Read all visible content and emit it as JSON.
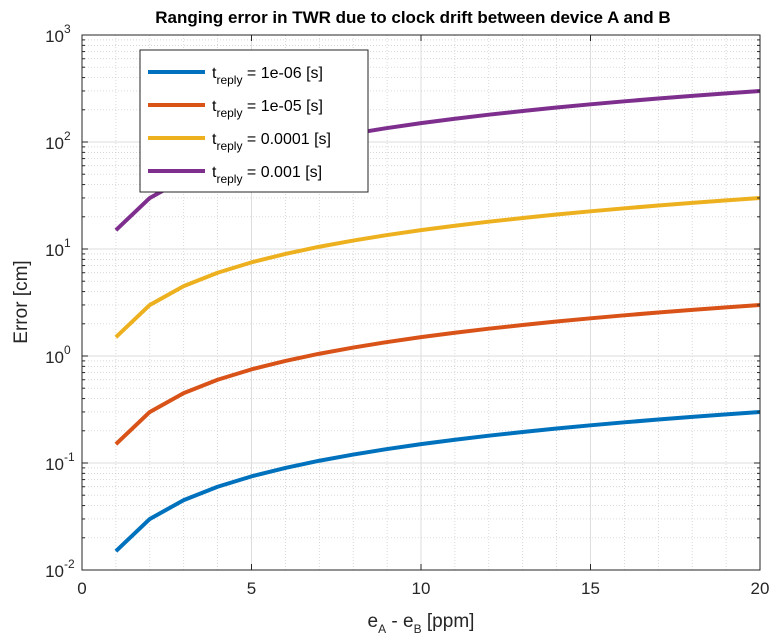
{
  "chart_data": {
    "type": "line",
    "title": "Ranging error in TWR due to clock drift between device A and B",
    "xlabel": {
      "e": "e",
      "sub_a": "A",
      "minus": " - ",
      "e2": "e",
      "sub_b": "B",
      "unit": " [ppm]"
    },
    "ylabel": "Error [cm]",
    "x_scale": "linear",
    "y_scale": "log",
    "xlim": [
      0,
      20
    ],
    "ylim": [
      0.01,
      1000
    ],
    "x_ticks": [
      0,
      5,
      10,
      15,
      20
    ],
    "y_ticks": [
      {
        "value": 0.01,
        "base": "10",
        "exp": "-2"
      },
      {
        "value": 0.1,
        "base": "10",
        "exp": "-1"
      },
      {
        "value": 1,
        "base": "10",
        "exp": "0"
      },
      {
        "value": 10,
        "base": "10",
        "exp": "1"
      },
      {
        "value": 100,
        "base": "10",
        "exp": "2"
      },
      {
        "value": 1000,
        "base": "10",
        "exp": "3"
      }
    ],
    "grid": true,
    "minor_grid": true,
    "legend_position": "top-left",
    "x": [
      1,
      2,
      3,
      4,
      5,
      6,
      7,
      8,
      9,
      10,
      11,
      12,
      13,
      14,
      15,
      16,
      17,
      18,
      19,
      20
    ],
    "series": [
      {
        "name_prefix": "t",
        "name_sub": "reply",
        "name_value": " = 1e-06 [s]",
        "color": "#0072BD",
        "values": [
          0.015,
          0.03,
          0.045,
          0.06,
          0.075,
          0.09,
          0.105,
          0.12,
          0.135,
          0.15,
          0.165,
          0.18,
          0.195,
          0.21,
          0.225,
          0.24,
          0.255,
          0.27,
          0.285,
          0.3
        ]
      },
      {
        "name_prefix": "t",
        "name_sub": "reply",
        "name_value": " = 1e-05 [s]",
        "color": "#D95319",
        "values": [
          0.15,
          0.3,
          0.45,
          0.6,
          0.75,
          0.9,
          1.05,
          1.2,
          1.35,
          1.5,
          1.65,
          1.8,
          1.95,
          2.1,
          2.25,
          2.4,
          2.55,
          2.7,
          2.85,
          3.0
        ]
      },
      {
        "name_prefix": "t",
        "name_sub": "reply",
        "name_value": " = 0.0001 [s]",
        "color": "#EDB120",
        "values": [
          1.5,
          3,
          4.5,
          6,
          7.5,
          9,
          10.5,
          12,
          13.5,
          15,
          16.5,
          18,
          19.5,
          21,
          22.5,
          24,
          25.5,
          27,
          28.5,
          30
        ]
      },
      {
        "name_prefix": "t",
        "name_sub": "reply",
        "name_value": " = 0.001 [s]",
        "color": "#7E2F8E",
        "values": [
          15,
          30,
          45,
          60,
          75,
          90,
          105,
          120,
          135,
          150,
          165,
          180,
          195,
          210,
          225,
          240,
          255,
          270,
          285,
          300
        ]
      }
    ]
  }
}
